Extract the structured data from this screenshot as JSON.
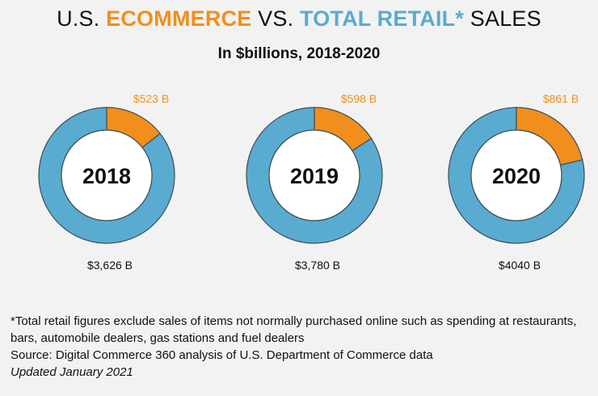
{
  "title": {
    "prefix": "U.S.",
    "ecommerce": "ECOMMERCE",
    "vs": "VS.",
    "total_retail": "TOTAL RETAIL",
    "asterisk": "*",
    "sales": "SALES"
  },
  "subtitle": "In $billions, 2018-2020",
  "colors": {
    "ecommerce": "#f28e1c",
    "total_retail": "#5aabd0",
    "background": "#f2f2f2"
  },
  "chart_data": {
    "type": "donut",
    "series": [
      {
        "name": "ECOMMERCE"
      },
      {
        "name": "TOTAL RETAIL"
      }
    ],
    "charts": [
      {
        "year": "2018",
        "ecommerce": 523,
        "ecommerce_label": "$523 B",
        "total_retail": 3626,
        "total_label": "$3,626 B"
      },
      {
        "year": "2019",
        "ecommerce": 598,
        "ecommerce_label": "$598 B",
        "total_retail": 3780,
        "total_label": "$3,780 B"
      },
      {
        "year": "2020",
        "ecommerce": 861,
        "ecommerce_label": "$861 B",
        "total_retail": 4040,
        "total_label": "$4040 B"
      }
    ]
  },
  "notes": {
    "footnote": "*Total retail figures exclude sales of items not normally purchased online such as spending at restaurants, bars, automobile dealers, gas stations and fuel dealers",
    "source": "Source: Digital Commerce 360 analysis of U.S. Department of Commerce data",
    "updated": "Updated January 2021"
  }
}
